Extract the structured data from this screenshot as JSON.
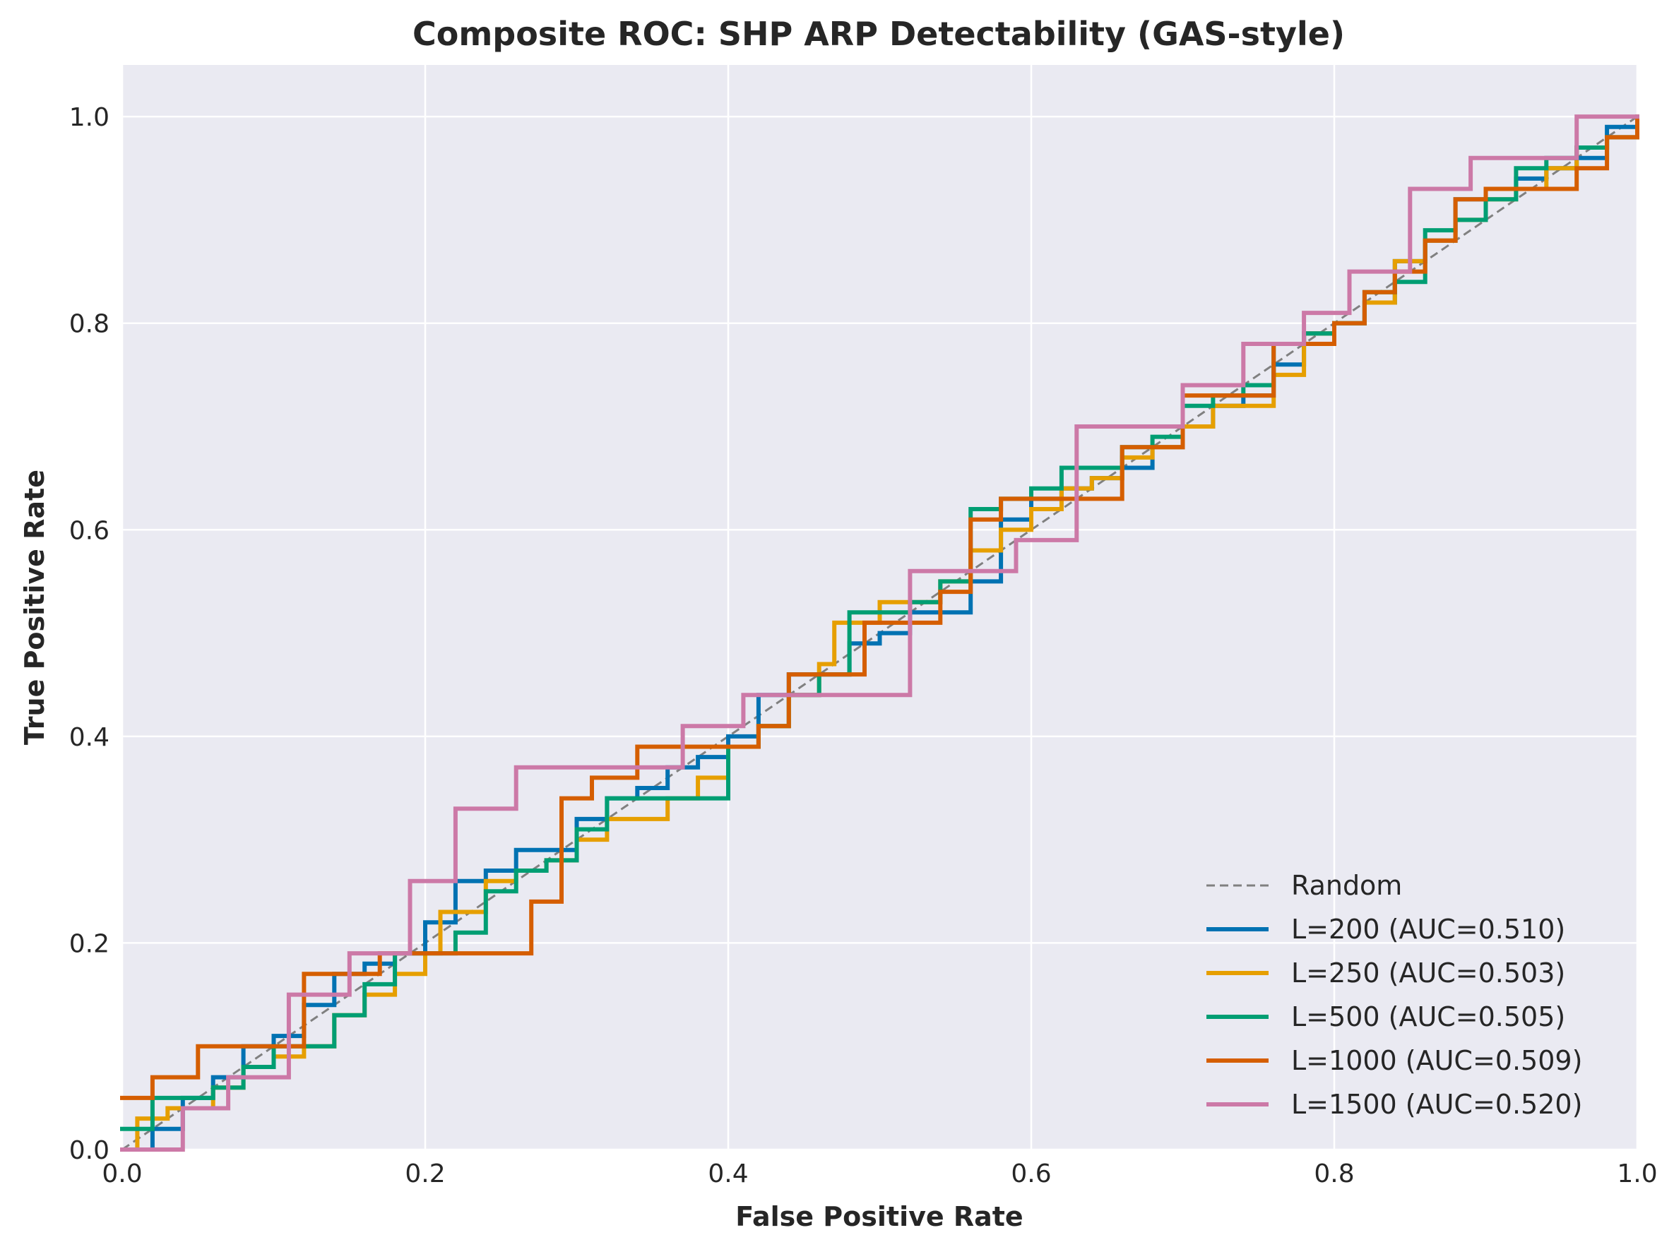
{
  "chart_data": {
    "type": "line",
    "title": "Composite ROC: SHP ARP Detectability (GAS-style)",
    "xlabel": "False Positive Rate",
    "ylabel": "True Positive Rate",
    "xlim": [
      0.0,
      1.0
    ],
    "ylim": [
      0.0,
      1.05
    ],
    "xticks": [
      "0.0",
      "0.2",
      "0.4",
      "0.6",
      "0.8",
      "1.0"
    ],
    "yticks": [
      "0.0",
      "0.2",
      "0.4",
      "0.6",
      "0.8",
      "1.0"
    ],
    "grid": true,
    "legend_position": "lower-right",
    "background_color": "#eaeaf2",
    "reference_line": {
      "name": "Random",
      "color": "#808080",
      "x": [
        0.0,
        1.0
      ],
      "y": [
        0.0,
        1.0
      ]
    },
    "series": [
      {
        "name": "L=200 (AUC=0.510)",
        "color": "#0072b2",
        "x": [
          0.0,
          0.02,
          0.04,
          0.06,
          0.08,
          0.1,
          0.12,
          0.14,
          0.16,
          0.18,
          0.2,
          0.22,
          0.24,
          0.26,
          0.28,
          0.3,
          0.32,
          0.34,
          0.36,
          0.38,
          0.4,
          0.42,
          0.44,
          0.46,
          0.48,
          0.5,
          0.52,
          0.54,
          0.56,
          0.58,
          0.6,
          0.62,
          0.64,
          0.66,
          0.68,
          0.7,
          0.72,
          0.74,
          0.76,
          0.78,
          0.8,
          0.82,
          0.84,
          0.86,
          0.88,
          0.9,
          0.92,
          0.94,
          0.96,
          0.98,
          1.0
        ],
        "y": [
          0.0,
          0.02,
          0.05,
          0.07,
          0.1,
          0.11,
          0.14,
          0.17,
          0.18,
          0.19,
          0.22,
          0.26,
          0.27,
          0.29,
          0.29,
          0.32,
          0.34,
          0.35,
          0.37,
          0.38,
          0.4,
          0.44,
          0.46,
          0.46,
          0.49,
          0.5,
          0.52,
          0.52,
          0.55,
          0.61,
          0.63,
          0.64,
          0.65,
          0.66,
          0.68,
          0.7,
          0.72,
          0.73,
          0.76,
          0.79,
          0.8,
          0.82,
          0.86,
          0.88,
          0.92,
          0.93,
          0.94,
          0.95,
          0.96,
          0.99,
          1.0
        ]
      },
      {
        "name": "L=250 (AUC=0.503)",
        "color": "#e69f00",
        "x": [
          0.0,
          0.01,
          0.03,
          0.06,
          0.08,
          0.1,
          0.12,
          0.14,
          0.16,
          0.18,
          0.2,
          0.21,
          0.24,
          0.26,
          0.28,
          0.3,
          0.32,
          0.34,
          0.36,
          0.38,
          0.4,
          0.42,
          0.44,
          0.46,
          0.47,
          0.5,
          0.52,
          0.54,
          0.56,
          0.58,
          0.6,
          0.62,
          0.64,
          0.66,
          0.68,
          0.7,
          0.72,
          0.74,
          0.76,
          0.78,
          0.8,
          0.82,
          0.84,
          0.86,
          0.88,
          0.9,
          0.92,
          0.94,
          0.96,
          0.98,
          1.0
        ],
        "y": [
          0.0,
          0.03,
          0.04,
          0.06,
          0.08,
          0.09,
          0.1,
          0.13,
          0.15,
          0.17,
          0.19,
          0.23,
          0.26,
          0.27,
          0.28,
          0.3,
          0.32,
          0.32,
          0.34,
          0.36,
          0.39,
          0.41,
          0.44,
          0.47,
          0.51,
          0.53,
          0.53,
          0.55,
          0.58,
          0.6,
          0.62,
          0.64,
          0.65,
          0.67,
          0.68,
          0.7,
          0.72,
          0.72,
          0.75,
          0.79,
          0.8,
          0.82,
          0.86,
          0.88,
          0.9,
          0.92,
          0.93,
          0.95,
          0.97,
          0.98,
          0.99
        ]
      },
      {
        "name": "L=500 (AUC=0.505)",
        "color": "#009e73",
        "x": [
          0.0,
          0.02,
          0.04,
          0.06,
          0.08,
          0.1,
          0.12,
          0.14,
          0.16,
          0.18,
          0.2,
          0.22,
          0.24,
          0.26,
          0.28,
          0.3,
          0.32,
          0.34,
          0.36,
          0.38,
          0.4,
          0.42,
          0.44,
          0.46,
          0.48,
          0.5,
          0.52,
          0.54,
          0.56,
          0.58,
          0.6,
          0.62,
          0.64,
          0.66,
          0.68,
          0.7,
          0.72,
          0.74,
          0.76,
          0.78,
          0.8,
          0.82,
          0.84,
          0.86,
          0.88,
          0.9,
          0.92,
          0.94,
          0.96,
          0.98,
          1.0
        ],
        "y": [
          0.02,
          0.05,
          0.05,
          0.06,
          0.08,
          0.1,
          0.1,
          0.13,
          0.16,
          0.19,
          0.19,
          0.21,
          0.25,
          0.27,
          0.28,
          0.31,
          0.34,
          0.34,
          0.34,
          0.34,
          0.39,
          0.41,
          0.44,
          0.46,
          0.52,
          0.52,
          0.53,
          0.55,
          0.62,
          0.63,
          0.64,
          0.66,
          0.66,
          0.68,
          0.69,
          0.72,
          0.73,
          0.74,
          0.78,
          0.79,
          0.8,
          0.83,
          0.84,
          0.89,
          0.9,
          0.92,
          0.95,
          0.96,
          0.97,
          0.98,
          0.99
        ]
      },
      {
        "name": "L=1000 (AUC=0.509)",
        "color": "#d55e00",
        "x": [
          0.0,
          0.02,
          0.05,
          0.08,
          0.1,
          0.12,
          0.15,
          0.17,
          0.19,
          0.22,
          0.25,
          0.27,
          0.29,
          0.31,
          0.34,
          0.37,
          0.4,
          0.42,
          0.44,
          0.47,
          0.49,
          0.52,
          0.54,
          0.56,
          0.58,
          0.6,
          0.62,
          0.64,
          0.66,
          0.68,
          0.7,
          0.72,
          0.74,
          0.76,
          0.78,
          0.8,
          0.82,
          0.84,
          0.86,
          0.88,
          0.9,
          0.92,
          0.94,
          0.96,
          0.98,
          1.0
        ],
        "y": [
          0.05,
          0.07,
          0.1,
          0.1,
          0.1,
          0.17,
          0.17,
          0.19,
          0.19,
          0.19,
          0.19,
          0.24,
          0.34,
          0.36,
          0.39,
          0.39,
          0.39,
          0.41,
          0.46,
          0.46,
          0.51,
          0.51,
          0.54,
          0.61,
          0.63,
          0.63,
          0.63,
          0.63,
          0.68,
          0.68,
          0.73,
          0.73,
          0.73,
          0.78,
          0.78,
          0.8,
          0.83,
          0.85,
          0.88,
          0.92,
          0.93,
          0.93,
          0.93,
          0.95,
          0.98,
          1.0
        ]
      },
      {
        "name": "L=1500 (AUC=0.520)",
        "color": "#cc79a7",
        "x": [
          0.0,
          0.04,
          0.07,
          0.11,
          0.15,
          0.19,
          0.22,
          0.26,
          0.3,
          0.33,
          0.37,
          0.41,
          0.44,
          0.48,
          0.52,
          0.56,
          0.59,
          0.63,
          0.67,
          0.7,
          0.74,
          0.78,
          0.81,
          0.85,
          0.89,
          0.93,
          0.96,
          1.0
        ],
        "y": [
          0.0,
          0.04,
          0.07,
          0.15,
          0.19,
          0.26,
          0.33,
          0.37,
          0.37,
          0.37,
          0.41,
          0.44,
          0.44,
          0.44,
          0.56,
          0.56,
          0.59,
          0.7,
          0.7,
          0.74,
          0.78,
          0.81,
          0.85,
          0.93,
          0.96,
          0.96,
          1.0,
          1.0
        ]
      }
    ]
  }
}
